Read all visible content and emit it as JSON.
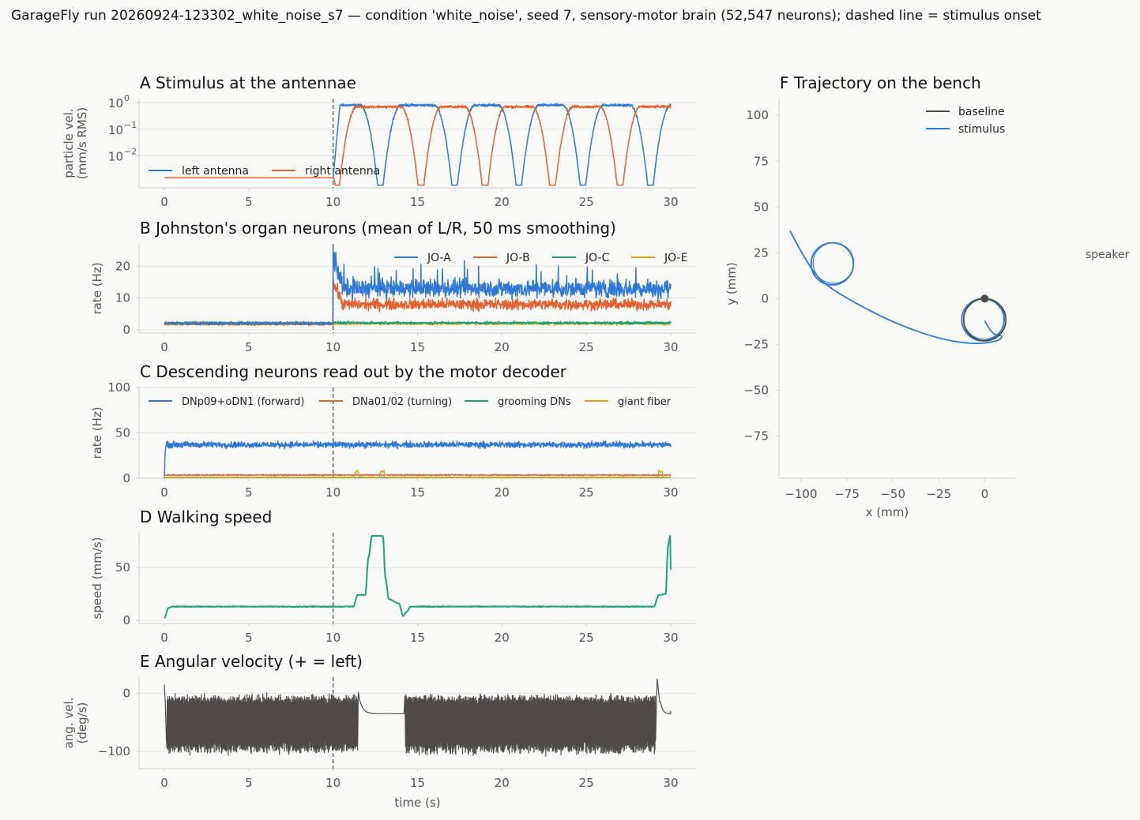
{
  "figure": {
    "suptitle": "GarageFly run 20260924-123302_white_noise_s7 — condition 'white_noise', seed 7, sensory-motor brain (52,547 neurons); dashed line = stimulus onset",
    "time_label": "time (s)",
    "speaker_label": "speaker",
    "colors": {
      "blue": "#2f78d6",
      "orange": "#e2612f",
      "green": "#1aa37b",
      "yellow": "#e9a000",
      "gray": "#4d4a47",
      "dark": "#4a4a4a",
      "grid": "#e4e4e4",
      "axis": "#d0d0d0",
      "tick_text": "#555555"
    }
  },
  "chart_data": [
    {
      "id": "A",
      "type": "line",
      "title": "A  Stimulus at the antennae",
      "ylabel": [
        "particle vel.",
        "(mm/s RMS)"
      ],
      "yscale": "log",
      "xlim": [
        -1.5,
        31.5
      ],
      "ylim_log10": [
        -3.2,
        0.15
      ],
      "x_ticks": [
        0,
        5,
        10,
        15,
        20,
        25,
        30
      ],
      "y_ticks": [
        {
          "label": "10",
          "exp": "0",
          "v": 0
        },
        {
          "label": "10",
          "exp": "−1",
          "v": -1
        },
        {
          "label": "10",
          "exp": "−2",
          "v": -2
        }
      ],
      "onset": 10,
      "legend": {
        "placement": "lower-left",
        "entries": [
          "left antenna",
          "right antenna"
        ]
      },
      "series": [
        {
          "name": "left antenna",
          "color": "blue",
          "description_values": {
            "baseline": 0.0015,
            "after_onset_level": 0.8,
            "notches_at_s": [
              12.8,
              17.2,
              21.0,
              24.8,
              28.8
            ]
          }
        },
        {
          "name": "right antenna",
          "color": "orange",
          "description_values": {
            "baseline": 0.0015,
            "after_onset_level": 0.7,
            "notches_at_s": [
              10.2,
              15.2,
              19.0,
              23.0,
              27.0
            ]
          }
        }
      ]
    },
    {
      "id": "B",
      "type": "line",
      "title": "B  Johnston's organ neurons (mean of L/R, 50 ms smoothing)",
      "ylabel": [
        "rate (Hz)"
      ],
      "xlim": [
        -1.5,
        31.5
      ],
      "ylim": [
        -1,
        27
      ],
      "x_ticks": [
        0,
        5,
        10,
        15,
        20,
        25,
        30
      ],
      "y_ticks": [
        0,
        10,
        20
      ],
      "onset": 10,
      "legend": {
        "placement": "top-right",
        "entries": [
          "JO-A",
          "JO-B",
          "JO-C",
          "JO-E"
        ]
      },
      "series": [
        {
          "name": "JO-A",
          "color": "blue",
          "pre": 2.0,
          "post": 13.0,
          "peak": 26.5
        },
        {
          "name": "JO-B",
          "color": "orange",
          "pre": 2.0,
          "post": 8.0,
          "peak": 17.0
        },
        {
          "name": "JO-C",
          "color": "green",
          "pre": 2.2,
          "post": 2.2,
          "peak": 4.5
        },
        {
          "name": "JO-E",
          "color": "yellow",
          "pre": 1.8,
          "post": 2.0,
          "peak": 3.5
        }
      ]
    },
    {
      "id": "C",
      "type": "line",
      "title": "C  Descending neurons read out by the motor decoder",
      "ylabel": [
        "rate (Hz)"
      ],
      "xlim": [
        -1.5,
        31.5
      ],
      "ylim": [
        0,
        100
      ],
      "x_ticks": [
        0,
        5,
        10,
        15,
        20,
        25,
        30
      ],
      "y_ticks": [
        0,
        50,
        100
      ],
      "onset": 10,
      "legend": {
        "placement": "top",
        "entries": [
          "DNp09+oDN1 (forward)",
          "DNa01/02 (turning)",
          "grooming DNs",
          "giant fiber"
        ]
      },
      "series": [
        {
          "name": "DNp09+oDN1 (forward)",
          "color": "blue",
          "level": 37,
          "range": [
            30,
            45
          ]
        },
        {
          "name": "DNa01/02 (turning)",
          "color": "orange",
          "level": 3.5,
          "range": [
            2,
            5
          ]
        },
        {
          "name": "grooming DNs",
          "color": "green",
          "level": 0.5
        },
        {
          "name": "giant fiber",
          "color": "yellow",
          "level": 1,
          "blips_at_s": [
            11.4,
            12.9,
            29.4
          ]
        }
      ]
    },
    {
      "id": "D",
      "type": "line",
      "title": "D  Walking speed",
      "ylabel": [
        "speed (mm/s)"
      ],
      "xlim": [
        -1.5,
        31.5
      ],
      "ylim": [
        -3,
        83
      ],
      "x_ticks": [
        0,
        5,
        10,
        15,
        20,
        25,
        30
      ],
      "y_ticks": [
        0,
        50
      ],
      "onset": 10,
      "series": [
        {
          "name": "speed",
          "color": "green",
          "x": [
            0,
            0.25,
            0.5,
            11.2,
            11.45,
            11.9,
            12.1,
            12.3,
            12.45,
            12.6,
            12.95,
            13.1,
            13.3,
            13.9,
            14.15,
            14.35,
            14.6,
            29.0,
            29.3,
            29.7,
            29.85,
            29.97,
            30.0
          ],
          "y": [
            2,
            12,
            13,
            13,
            24,
            24,
            60,
            80,
            80,
            80,
            80,
            40,
            20,
            16,
            4,
            8,
            13,
            13,
            24,
            25,
            72,
            80,
            48
          ]
        }
      ]
    },
    {
      "id": "E",
      "type": "line",
      "title": "E  Angular velocity (+ = left)",
      "ylabel": [
        "ang. vel.",
        "(deg/s)"
      ],
      "xlabel": "time (s)",
      "xlim": [
        -1.5,
        31.5
      ],
      "ylim": [
        -130,
        28
      ],
      "x_ticks": [
        0,
        5,
        10,
        15,
        20,
        25,
        30
      ],
      "y_ticks": [
        0,
        -100
      ],
      "onset": 10,
      "series": [
        {
          "name": "ang. vel.",
          "color": "gray",
          "description_values": {
            "oscillating_mean": -50,
            "oscillating_range": [
              -120,
              0
            ],
            "quiet_segment_s": [
              11.5,
              14.2
            ],
            "quiet_value": -35
          }
        }
      ]
    },
    {
      "id": "F",
      "type": "line",
      "title": "F  Trajectory on the bench",
      "xlabel": "x (mm)",
      "ylabel": [
        "y (mm)"
      ],
      "xlim": [
        -112,
        17
      ],
      "ylim": [
        -98,
        110
      ],
      "x_ticks": [
        -100,
        -75,
        -50,
        -25,
        0
      ],
      "y_ticks": [
        100,
        75,
        50,
        25,
        0,
        -25,
        -50,
        -75
      ],
      "legend": {
        "placement": "top-right",
        "entries": [
          "baseline",
          "stimulus"
        ]
      },
      "series": [
        {
          "name": "baseline",
          "color": "dark",
          "circle_center": [
            0,
            -11.5
          ],
          "circle_radius": 11.5
        },
        {
          "name": "stimulus",
          "color": "blue",
          "x": [
            0,
            4,
            10,
            8,
            -5,
            -25,
            -50,
            -75,
            -90,
            -98,
            -106
          ],
          "y": [
            -12,
            -20,
            -20,
            -23,
            -25,
            -22,
            -13,
            0,
            10,
            22,
            37
          ],
          "loops": [
            {
              "center": [
                -83,
                19
              ],
              "radius": 11.5
            },
            {
              "center": [
                -1,
                -11.5
              ],
              "radius": 11.5
            }
          ]
        }
      ]
    }
  ]
}
